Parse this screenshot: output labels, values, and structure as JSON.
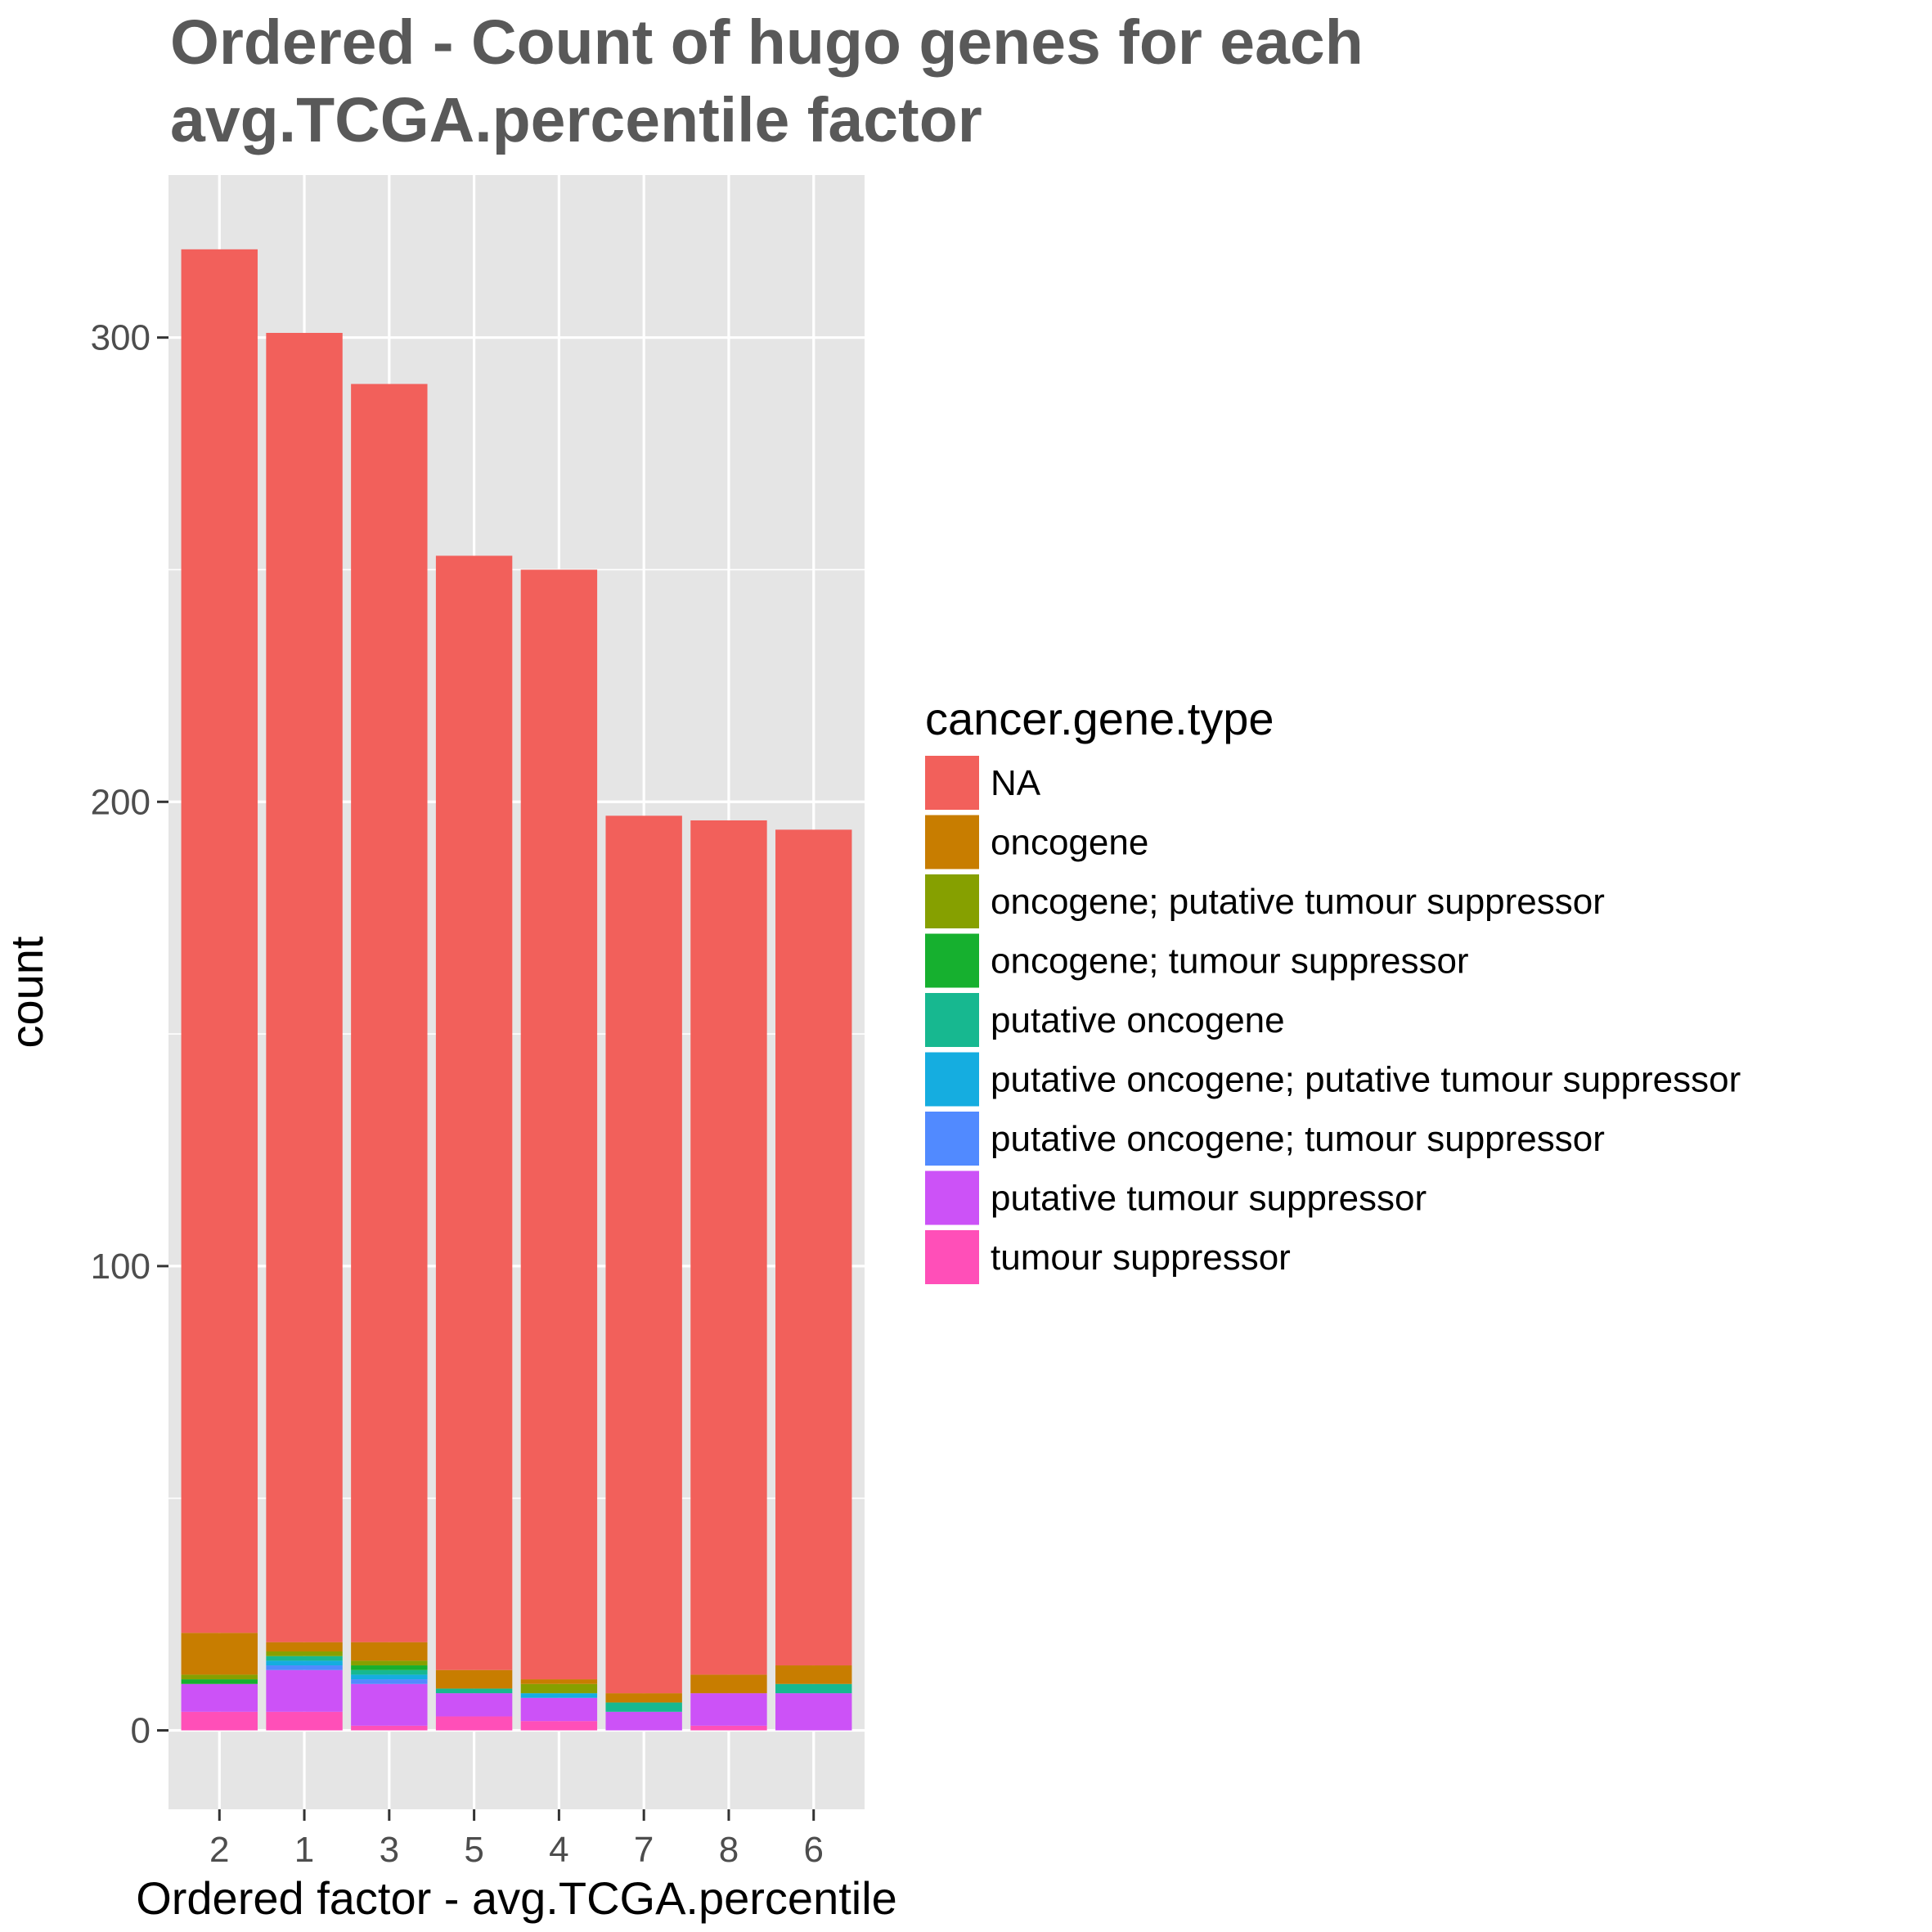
{
  "chart_data": {
    "type": "bar",
    "stacked": true,
    "title_lines": [
      "Ordered - Count of hugo genes for each",
      "avg.TCGA.percentile factor"
    ],
    "xlabel": "Ordered factor - avg.TCGA.percentile",
    "ylabel": "count",
    "categories": [
      "2",
      "1",
      "3",
      "5",
      "4",
      "7",
      "8",
      "6"
    ],
    "ylim": [
      -17,
      335
    ],
    "yticks": [
      0,
      100,
      200,
      300
    ],
    "grid": true,
    "legend": {
      "title": "cancer.gene.type",
      "position": "right"
    },
    "series": [
      {
        "name": "tumour suppressor",
        "color": "#FF4FB8",
        "values": [
          4,
          4,
          1,
          3,
          2,
          0,
          1,
          0
        ]
      },
      {
        "name": "putative tumour suppressor",
        "color": "#CC52F7",
        "values": [
          6,
          9,
          9,
          5,
          5,
          4,
          7,
          8
        ]
      },
      {
        "name": "putative oncogene; tumour suppressor",
        "color": "#518AFF",
        "values": [
          0,
          1,
          1,
          0,
          0,
          0,
          0,
          0
        ]
      },
      {
        "name": "putative oncogene; putative tumour suppressor",
        "color": "#15ADE0",
        "values": [
          0,
          1,
          1,
          0,
          1,
          0,
          0,
          0
        ]
      },
      {
        "name": "putative oncogene",
        "color": "#17B890",
        "values": [
          0,
          1,
          1,
          1,
          0,
          2,
          0,
          2
        ]
      },
      {
        "name": "oncogene; tumour suppressor",
        "color": "#16B02F",
        "values": [
          1,
          0,
          1,
          0,
          0,
          0,
          0,
          0
        ]
      },
      {
        "name": "oncogene; putative tumour suppressor",
        "color": "#86A000",
        "values": [
          1,
          1,
          1,
          0,
          2,
          0,
          0,
          0
        ]
      },
      {
        "name": "oncogene",
        "color": "#C87D00",
        "values": [
          9,
          2,
          4,
          4,
          1,
          2,
          4,
          4
        ]
      },
      {
        "name": "NA",
        "color": "#F2605B",
        "values": [
          298,
          282,
          271,
          240,
          239,
          189,
          184,
          180
        ]
      }
    ],
    "legend_order": [
      "NA",
      "oncogene",
      "oncogene; putative tumour suppressor",
      "oncogene; tumour suppressor",
      "putative oncogene",
      "putative oncogene; putative tumour suppressor",
      "putative oncogene; tumour suppressor",
      "putative tumour suppressor",
      "tumour suppressor"
    ],
    "colors": {
      "panel_background": "#E5E5E5",
      "grid": "#FFFFFF"
    }
  }
}
